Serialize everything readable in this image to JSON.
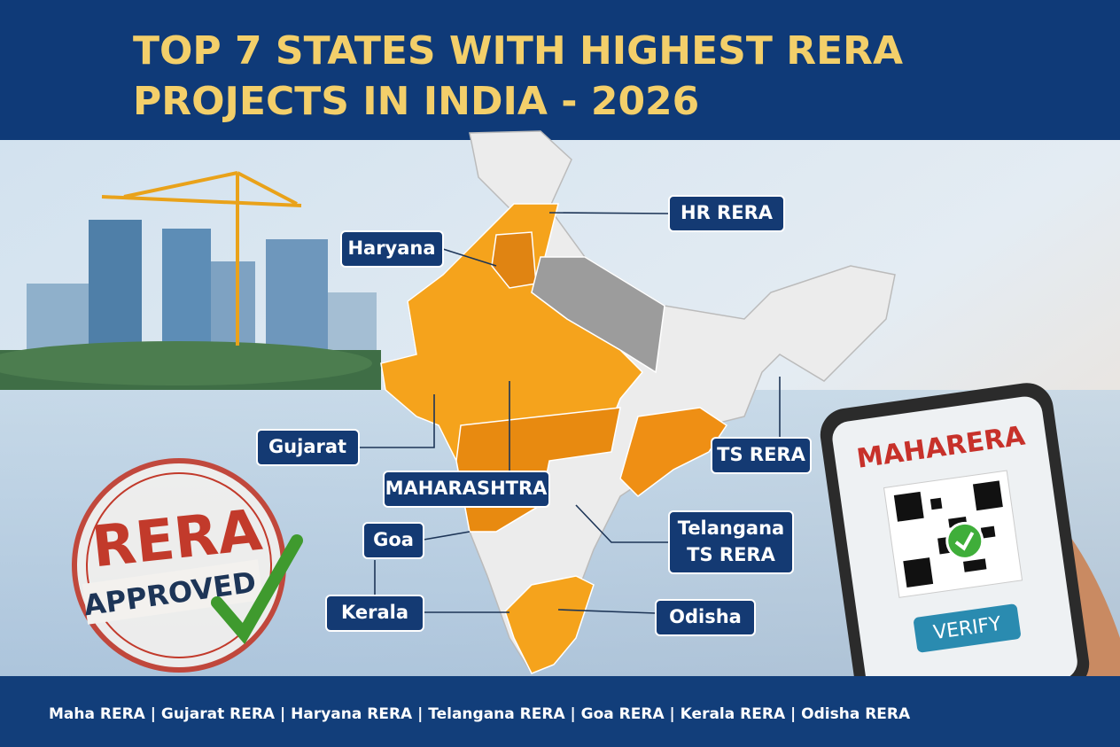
{
  "title": [
    "TOP 7 STATES WITH HIGHEST RERA",
    "PROJECTS IN INDIA - 2026"
  ],
  "labels": {
    "haryana": "Haryana",
    "hr_rera": "HR RERA",
    "gujarat": "Gujarat",
    "ts_rera": "TS RERA",
    "maharashtra": "MAHARASHTRA",
    "goa": "Goa",
    "telangana": [
      "Telangana",
      "TS RERA"
    ],
    "kerala": "Kerala",
    "odisha": "Odisha"
  },
  "stamp": {
    "top": "RERA",
    "bottom": "APPROVED"
  },
  "phone": {
    "brand": "MAHARERA",
    "button": "VERIFY"
  },
  "footer": "Maha RERA | Gujarat RERA | Haryana RERA | Telangana RERA | Goa RERA | Kerala RERA | Odisha RERA"
}
